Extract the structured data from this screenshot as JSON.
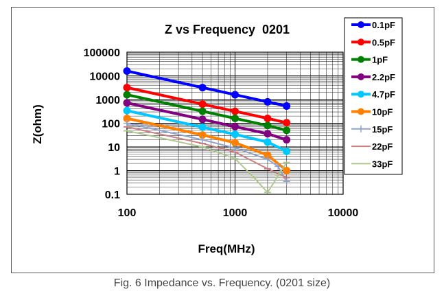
{
  "caption": "Fig. 6 Impedance vs. Frequency. (0201 size)",
  "chart_data": {
    "type": "line",
    "title": "Z vs Frequency  0201",
    "xlabel": "Freq(MHz)",
    "ylabel": "Z(ohm)",
    "x_scale": "log",
    "y_scale": "log",
    "xlim": [
      100,
      10000
    ],
    "ylim": [
      0.1,
      100000
    ],
    "x_ticks": [
      "100",
      "1000",
      "10000"
    ],
    "y_ticks": [
      "0.1",
      "1",
      "10",
      "100",
      "1000",
      "10000",
      "100000"
    ],
    "grid": true,
    "legend_position": "right",
    "series": [
      {
        "name": "0.1pF",
        "color": "#0000ff",
        "marker": "circle",
        "width": 4,
        "x": [
          100,
          500,
          1000,
          2000,
          3000
        ],
        "y": [
          16000,
          3200,
          1600,
          800,
          530
        ]
      },
      {
        "name": "0.5pF",
        "color": "#ff0000",
        "marker": "circle",
        "width": 4,
        "x": [
          100,
          500,
          1000,
          2000,
          3000
        ],
        "y": [
          3200,
          640,
          320,
          160,
          105
        ]
      },
      {
        "name": "1pF",
        "color": "#008000",
        "marker": "circle",
        "width": 4,
        "x": [
          100,
          500,
          1000,
          2000,
          3000
        ],
        "y": [
          1600,
          320,
          160,
          80,
          50
        ]
      },
      {
        "name": "2.2pF",
        "color": "#800080",
        "marker": "circle",
        "width": 4,
        "x": [
          100,
          500,
          1000,
          2000,
          3000
        ],
        "y": [
          720,
          145,
          72,
          36,
          20
        ]
      },
      {
        "name": "4.7pF",
        "color": "#00c8ff",
        "marker": "circle",
        "width": 4,
        "x": [
          100,
          500,
          1000,
          2000,
          3000
        ],
        "y": [
          340,
          68,
          34,
          16,
          6.5
        ]
      },
      {
        "name": "10pF",
        "color": "#ff7f00",
        "marker": "circle",
        "width": 4,
        "x": [
          100,
          500,
          1000,
          2000,
          3000
        ],
        "y": [
          160,
          32,
          15,
          4.5,
          1
        ]
      },
      {
        "name": "15pF",
        "color": "#8ea2cc",
        "marker": "plus",
        "width": 2,
        "x": [
          100,
          500,
          1000,
          2000,
          2500,
          3000
        ],
        "y": [
          100,
          20,
          9,
          3,
          1.5,
          0.35
        ]
      },
      {
        "name": "22pF",
        "color": "#c88080",
        "marker": "dash",
        "width": 2,
        "x": [
          100,
          500,
          1000,
          2000,
          3000
        ],
        "y": [
          70,
          14,
          6,
          1.2,
          0.5
        ]
      },
      {
        "name": "33pF",
        "color": "#b0c890",
        "marker": "dash",
        "width": 2,
        "x": [
          100,
          500,
          1000,
          1500,
          2000,
          2500,
          3000
        ],
        "y": [
          48,
          10,
          3.2,
          0.5,
          0.12,
          0.6,
          2.2
        ]
      }
    ]
  }
}
